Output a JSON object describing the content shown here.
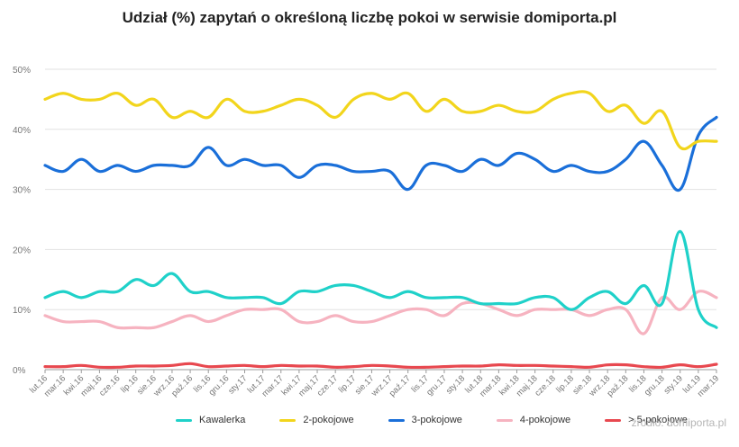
{
  "chart_data": {
    "type": "line",
    "title": "Udział (%) zapytań o określoną liczbę pokoi w serwisie domiporta.pl",
    "xlabel": "",
    "ylabel": "",
    "ylim": [
      0,
      50
    ],
    "yticks": [
      "0%",
      "10%",
      "20%",
      "30%",
      "40%",
      "50%"
    ],
    "ytick_values": [
      0,
      10,
      20,
      30,
      40,
      50
    ],
    "x": [
      "lut.16",
      "mar.16",
      "kwi.16",
      "maj.16",
      "cze.16",
      "lip.16",
      "sie.16",
      "wrz.16",
      "paź.16",
      "lis.16",
      "gru.16",
      "sty.17",
      "lut.17",
      "mar.17",
      "kwi.17",
      "maj.17",
      "cze.17",
      "lip.17",
      "sie.17",
      "wrz.17",
      "paź.17",
      "lis.17",
      "gru.17",
      "sty.18",
      "lut.18",
      "mar.18",
      "kwi.18",
      "maj.18",
      "cze.18",
      "lip.18",
      "sie.18",
      "wrz.18",
      "paź.18",
      "lis.18",
      "gru.18",
      "sty.19",
      "lut.19",
      "mar.19"
    ],
    "grid": true,
    "legend_position": "bottom",
    "series": [
      {
        "name": "Kawalerka",
        "color": "#1fd1c9",
        "values": [
          12,
          13,
          12,
          13,
          13,
          15,
          14,
          16,
          13,
          13,
          12,
          12,
          12,
          11,
          13,
          13,
          14,
          14,
          13,
          12,
          13,
          12,
          12,
          12,
          11,
          11,
          11,
          12,
          12,
          10,
          12,
          13,
          11,
          14,
          11,
          23,
          10,
          7
        ]
      },
      {
        "name": "2-pokojowe",
        "color": "#f2d51c",
        "values": [
          45,
          46,
          45,
          45,
          46,
          44,
          45,
          42,
          43,
          42,
          45,
          43,
          43,
          44,
          45,
          44,
          42,
          45,
          46,
          45,
          46,
          43,
          45,
          43,
          43,
          44,
          43,
          43,
          45,
          46,
          46,
          43,
          44,
          41,
          43,
          37,
          38,
          38
        ]
      },
      {
        "name": "3-pokojowe",
        "color": "#1a6fd9",
        "values": [
          34,
          33,
          35,
          33,
          34,
          33,
          34,
          34,
          34,
          37,
          34,
          35,
          34,
          34,
          32,
          34,
          34,
          33,
          33,
          33,
          30,
          34,
          34,
          33,
          35,
          34,
          36,
          35,
          33,
          34,
          33,
          33,
          35,
          38,
          34,
          30,
          39,
          42
        ]
      },
      {
        "name": "4-pokojowe",
        "color": "#f6b3c0",
        "values": [
          9,
          8,
          8,
          8,
          7,
          7,
          7,
          8,
          9,
          8,
          9,
          10,
          10,
          10,
          8,
          8,
          9,
          8,
          8,
          9,
          10,
          10,
          9,
          11,
          11,
          10,
          9,
          10,
          10,
          10,
          9,
          10,
          10,
          6,
          12,
          10,
          13,
          12
        ]
      },
      {
        "name": "> 5-pokojowe",
        "color": "#e8484f",
        "values": [
          0.5,
          0.5,
          0.7,
          0.4,
          0.4,
          0.6,
          0.6,
          0.7,
          1,
          0.5,
          0.6,
          0.7,
          0.5,
          0.7,
          0.6,
          0.6,
          0.4,
          0.5,
          0.7,
          0.6,
          0.4,
          0.4,
          0.5,
          0.6,
          0.6,
          0.8,
          0.7,
          0.7,
          0.6,
          0.5,
          0.4,
          0.8,
          0.8,
          0.5,
          0.4,
          0.8,
          0.5,
          0.9
        ]
      }
    ]
  },
  "source_note": "źródło: domiporta.pl"
}
